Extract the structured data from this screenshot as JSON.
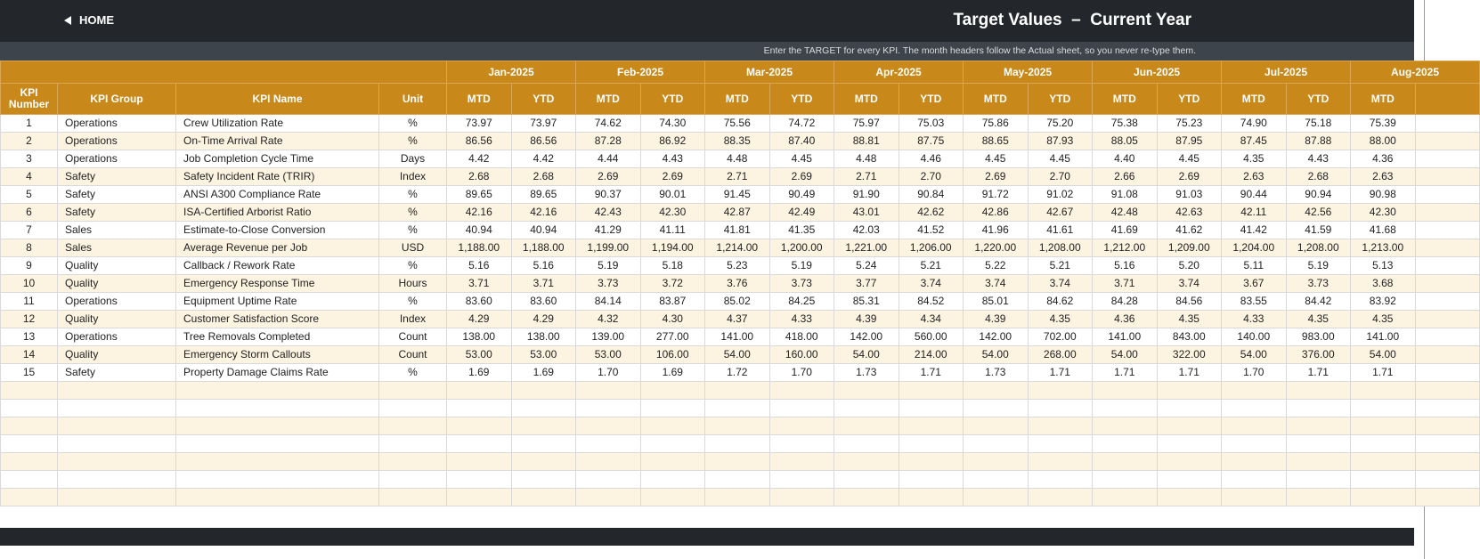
{
  "header": {
    "home": "HOME",
    "title": "Target Values  –  Current Year",
    "instruction": "Enter the TARGET for every KPI. The month headers follow the Actual sheet, so you never re-type them."
  },
  "table": {
    "columns": [
      "KPI Number",
      "KPI Group",
      "KPI Name",
      "Unit"
    ],
    "months": [
      "Jan-2025",
      "Feb-2025",
      "Mar-2025",
      "Apr-2025",
      "May-2025",
      "Jun-2025",
      "Jul-2025",
      "Aug-2025"
    ],
    "subheaders": [
      "MTD",
      "YTD",
      "MTD",
      "YTD",
      "MTD",
      "YTD",
      "MTD",
      "YTD",
      "MTD",
      "YTD",
      "MTD",
      "YTD",
      "MTD",
      "YTD",
      "MTD"
    ],
    "rows": [
      [
        "1",
        "Operations",
        "Crew Utilization Rate",
        "%",
        "73.97",
        "73.97",
        "74.62",
        "74.30",
        "75.56",
        "74.72",
        "75.97",
        "75.03",
        "75.86",
        "75.20",
        "75.38",
        "75.23",
        "74.90",
        "75.18",
        "75.39"
      ],
      [
        "2",
        "Operations",
        "On-Time Arrival Rate",
        "%",
        "86.56",
        "86.56",
        "87.28",
        "86.92",
        "88.35",
        "87.40",
        "88.81",
        "87.75",
        "88.65",
        "87.93",
        "88.05",
        "87.95",
        "87.45",
        "87.88",
        "88.00"
      ],
      [
        "3",
        "Operations",
        "Job Completion Cycle Time",
        "Days",
        "4.42",
        "4.42",
        "4.44",
        "4.43",
        "4.48",
        "4.45",
        "4.48",
        "4.46",
        "4.45",
        "4.45",
        "4.40",
        "4.45",
        "4.35",
        "4.43",
        "4.36"
      ],
      [
        "4",
        "Safety",
        "Safety Incident Rate (TRIR)",
        "Index",
        "2.68",
        "2.68",
        "2.69",
        "2.69",
        "2.71",
        "2.69",
        "2.71",
        "2.70",
        "2.69",
        "2.70",
        "2.66",
        "2.69",
        "2.63",
        "2.68",
        "2.63"
      ],
      [
        "5",
        "Safety",
        "ANSI A300 Compliance Rate",
        "%",
        "89.65",
        "89.65",
        "90.37",
        "90.01",
        "91.45",
        "90.49",
        "91.90",
        "90.84",
        "91.72",
        "91.02",
        "91.08",
        "91.03",
        "90.44",
        "90.94",
        "90.98"
      ],
      [
        "6",
        "Safety",
        "ISA-Certified Arborist Ratio",
        "%",
        "42.16",
        "42.16",
        "42.43",
        "42.30",
        "42.87",
        "42.49",
        "43.01",
        "42.62",
        "42.86",
        "42.67",
        "42.48",
        "42.63",
        "42.11",
        "42.56",
        "42.30"
      ],
      [
        "7",
        "Sales",
        "Estimate-to-Close Conversion",
        "%",
        "40.94",
        "40.94",
        "41.29",
        "41.11",
        "41.81",
        "41.35",
        "42.03",
        "41.52",
        "41.96",
        "41.61",
        "41.69",
        "41.62",
        "41.42",
        "41.59",
        "41.68"
      ],
      [
        "8",
        "Sales",
        "Average Revenue per Job",
        "USD",
        "1,188.00",
        "1,188.00",
        "1,199.00",
        "1,194.00",
        "1,214.00",
        "1,200.00",
        "1,221.00",
        "1,206.00",
        "1,220.00",
        "1,208.00",
        "1,212.00",
        "1,209.00",
        "1,204.00",
        "1,208.00",
        "1,213.00"
      ],
      [
        "9",
        "Quality",
        "Callback / Rework Rate",
        "%",
        "5.16",
        "5.16",
        "5.19",
        "5.18",
        "5.23",
        "5.19",
        "5.24",
        "5.21",
        "5.22",
        "5.21",
        "5.16",
        "5.20",
        "5.11",
        "5.19",
        "5.13"
      ],
      [
        "10",
        "Quality",
        "Emergency Response Time",
        "Hours",
        "3.71",
        "3.71",
        "3.73",
        "3.72",
        "3.76",
        "3.73",
        "3.77",
        "3.74",
        "3.74",
        "3.74",
        "3.71",
        "3.74",
        "3.67",
        "3.73",
        "3.68"
      ],
      [
        "11",
        "Operations",
        "Equipment Uptime Rate",
        "%",
        "83.60",
        "83.60",
        "84.14",
        "83.87",
        "85.02",
        "84.25",
        "85.31",
        "84.52",
        "85.01",
        "84.62",
        "84.28",
        "84.56",
        "83.55",
        "84.42",
        "83.92"
      ],
      [
        "12",
        "Quality",
        "Customer Satisfaction Score",
        "Index",
        "4.29",
        "4.29",
        "4.32",
        "4.30",
        "4.37",
        "4.33",
        "4.39",
        "4.34",
        "4.39",
        "4.35",
        "4.36",
        "4.35",
        "4.33",
        "4.35",
        "4.35"
      ],
      [
        "13",
        "Operations",
        "Tree Removals Completed",
        "Count",
        "138.00",
        "138.00",
        "139.00",
        "277.00",
        "141.00",
        "418.00",
        "142.00",
        "560.00",
        "142.00",
        "702.00",
        "141.00",
        "843.00",
        "140.00",
        "983.00",
        "141.00"
      ],
      [
        "14",
        "Quality",
        "Emergency Storm Callouts",
        "Count",
        "53.00",
        "53.00",
        "53.00",
        "106.00",
        "54.00",
        "160.00",
        "54.00",
        "214.00",
        "54.00",
        "268.00",
        "54.00",
        "322.00",
        "54.00",
        "376.00",
        "54.00"
      ],
      [
        "15",
        "Safety",
        "Property Damage Claims Rate",
        "%",
        "1.69",
        "1.69",
        "1.70",
        "1.69",
        "1.72",
        "1.70",
        "1.73",
        "1.71",
        "1.73",
        "1.71",
        "1.71",
        "1.71",
        "1.70",
        "1.71",
        "1.71"
      ]
    ]
  }
}
